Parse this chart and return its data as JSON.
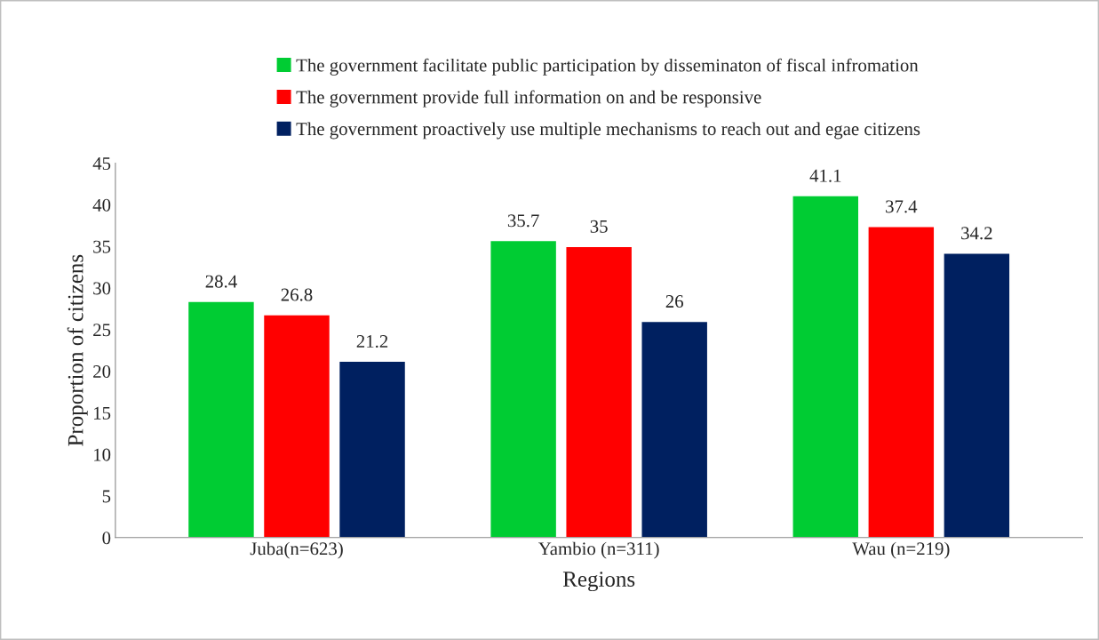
{
  "chart_data": {
    "type": "bar",
    "xlabel": "Regions",
    "ylabel": "Proportion of citizens",
    "categories": [
      "Juba(n=623)",
      "Yambio (n=311)",
      "Wau (n=219)"
    ],
    "series": [
      {
        "name": "The government facilitate public participation by disseminaton of fiscal infromation",
        "color": "#00cc33",
        "values": [
          28.4,
          35.7,
          41.1
        ]
      },
      {
        "name": "The government provide full information on and be responsive",
        "color": "#ff0000",
        "values": [
          26.8,
          35,
          37.4
        ]
      },
      {
        "name": "The government proactively use multiple mechanisms to reach out and egae citizens",
        "color": "#002060",
        "values": [
          21.2,
          26,
          34.2
        ]
      }
    ],
    "ylim": [
      0,
      45
    ],
    "yticks": [
      0,
      5,
      10,
      15,
      20,
      25,
      30,
      35,
      40,
      45
    ],
    "grid": false,
    "legend": "top",
    "data_labels": true
  }
}
